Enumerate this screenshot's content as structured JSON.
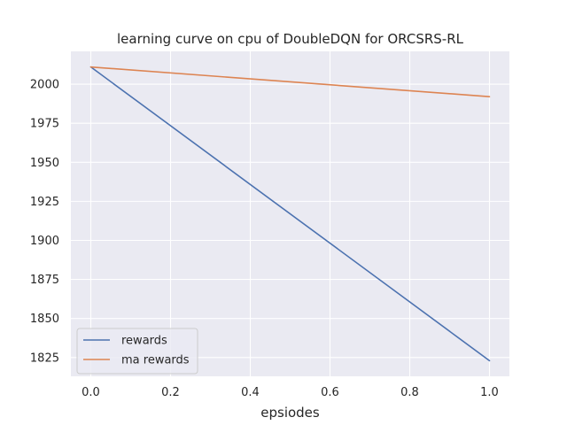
{
  "chart_data": {
    "type": "line",
    "title": "learning curve on cpu of DoubleDQN for ORCSRS-RL",
    "xlabel": "epsiodes",
    "ylabel": "",
    "x": [
      0.0,
      1.0
    ],
    "xlim": [
      -0.05,
      1.05
    ],
    "ylim": [
      1813,
      2021
    ],
    "xticks": [
      0.0,
      0.2,
      0.4,
      0.6,
      0.8,
      1.0
    ],
    "xtick_labels": [
      "0.0",
      "0.2",
      "0.4",
      "0.6",
      "0.8",
      "1.0"
    ],
    "yticks": [
      1825,
      1850,
      1875,
      1900,
      1925,
      1950,
      1975,
      2000
    ],
    "ytick_labels": [
      "1825",
      "1850",
      "1875",
      "1900",
      "1925",
      "1950",
      "1975",
      "2000"
    ],
    "grid": true,
    "legend_position": "lower-left",
    "series": [
      {
        "name": "rewards",
        "color": "#4c72b0",
        "values": [
          2011,
          1823
        ]
      },
      {
        "name": "ma rewards",
        "color": "#dd8452",
        "values": [
          2011,
          1992
        ]
      }
    ],
    "colors": {
      "plot_background": "#eaeaf2",
      "grid": "#ffffff"
    }
  }
}
